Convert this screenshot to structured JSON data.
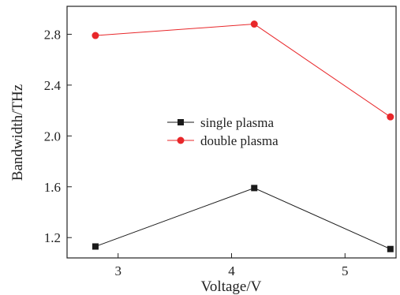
{
  "chart_data": {
    "type": "line",
    "xlabel": "Voltage/V",
    "ylabel": "Bandwidth/THz",
    "xlim": [
      2.55,
      5.45
    ],
    "ylim": [
      1.04,
      3.02
    ],
    "xticks": [
      3,
      4,
      5
    ],
    "yticks": [
      1.2,
      1.6,
      2.0,
      2.4,
      2.8
    ],
    "x_tick_labels": [
      "3",
      "4",
      "5"
    ],
    "y_tick_labels": [
      "1.2",
      "1.6",
      "2.0",
      "2.4",
      "2.8"
    ],
    "grid": false,
    "legend_position": "center",
    "series": [
      {
        "name": "single plasma",
        "color": "#1a1a1a",
        "marker": "square",
        "x": [
          2.8,
          4.2,
          5.4
        ],
        "y": [
          1.13,
          1.59,
          1.11
        ]
      },
      {
        "name": "double plasma",
        "color": "#e8272a",
        "marker": "circle",
        "x": [
          2.8,
          4.2,
          5.4
        ],
        "y": [
          2.79,
          2.88,
          2.15
        ]
      }
    ]
  }
}
